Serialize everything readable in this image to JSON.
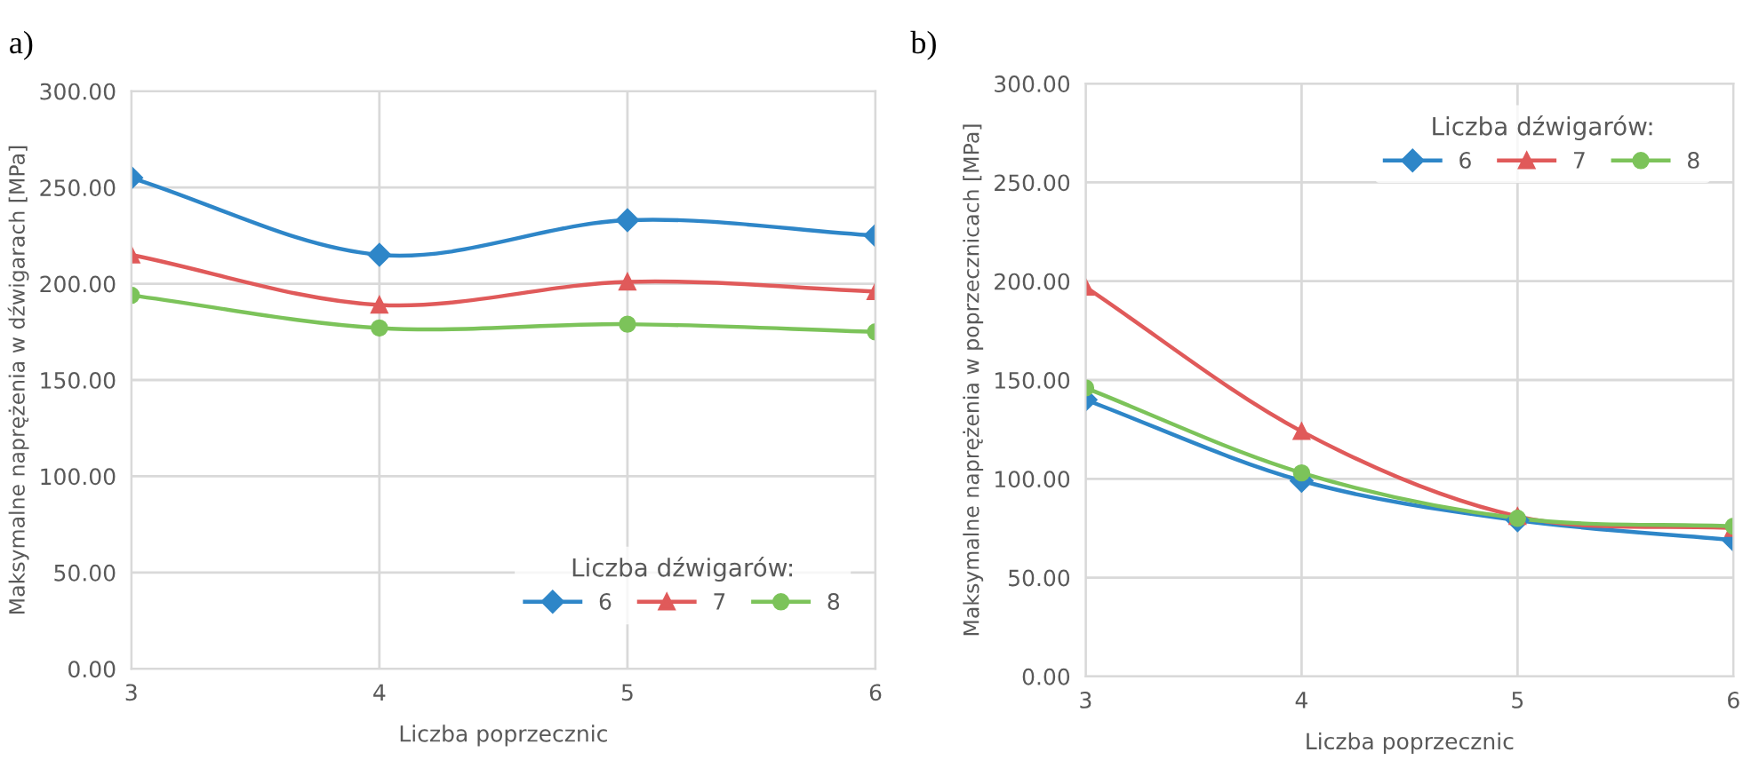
{
  "chart_data": [
    {
      "type": "line",
      "annotations": [
        "a)"
      ],
      "xlabel": "Liczba poprzecznic",
      "ylabel": "Maksymalne naprężenia w dźwigarach [MPa]",
      "x": [
        3,
        4,
        5,
        6
      ],
      "xlim": [
        3,
        6
      ],
      "xticks": [
        3,
        4,
        5,
        6
      ],
      "ylim": [
        0,
        300
      ],
      "yticks": [
        {
          "value": 0,
          "label": "0.00"
        },
        {
          "value": 50,
          "label": "50.00"
        },
        {
          "value": 100,
          "label": "100.00"
        },
        {
          "value": 150,
          "label": "150.00"
        },
        {
          "value": 200,
          "label": "200.00"
        },
        {
          "value": 250,
          "label": "250.00"
        },
        {
          "value": 300,
          "label": "300.00"
        }
      ],
      "grid": true,
      "legend": "bottom right",
      "legend_title": "Liczba dźwigarów:",
      "series": [
        {
          "name": "6",
          "color": "#2e86c8",
          "marker": "diamond",
          "values": [
            255,
            215,
            233,
            225
          ]
        },
        {
          "name": "7",
          "color": "#e05a5a",
          "marker": "triangle",
          "values": [
            215,
            189,
            201,
            196
          ]
        },
        {
          "name": "8",
          "color": "#7cc35a",
          "marker": "circle",
          "values": [
            194,
            177,
            179,
            175
          ]
        }
      ]
    },
    {
      "type": "line",
      "annotations": [
        "b)"
      ],
      "xlabel": "Liczba poprzecznic",
      "ylabel": "Maksymalne naprężenia w poprzecznicach [MPa]",
      "x": [
        3,
        4,
        5,
        6
      ],
      "xlim": [
        3,
        6
      ],
      "xticks": [
        3,
        4,
        5,
        6
      ],
      "ylim": [
        0,
        300
      ],
      "yticks": [
        {
          "value": 0,
          "label": "0.00"
        },
        {
          "value": 50,
          "label": "50.00"
        },
        {
          "value": 100,
          "label": "100.00"
        },
        {
          "value": 150,
          "label": "150.00"
        },
        {
          "value": 200,
          "label": "200.00"
        },
        {
          "value": 250,
          "label": "250.00"
        },
        {
          "value": 300,
          "label": "300.00"
        }
      ],
      "grid": true,
      "legend": "top right",
      "legend_title": "Liczba dźwigarów:",
      "series": [
        {
          "name": "6",
          "color": "#2e86c8",
          "marker": "diamond",
          "values": [
            140,
            99,
            79,
            69
          ]
        },
        {
          "name": "7",
          "color": "#e05a5a",
          "marker": "triangle",
          "values": [
            197,
            124,
            81,
            75
          ]
        },
        {
          "name": "8",
          "color": "#7cc35a",
          "marker": "circle",
          "values": [
            146,
            103,
            80,
            76
          ]
        }
      ]
    }
  ]
}
